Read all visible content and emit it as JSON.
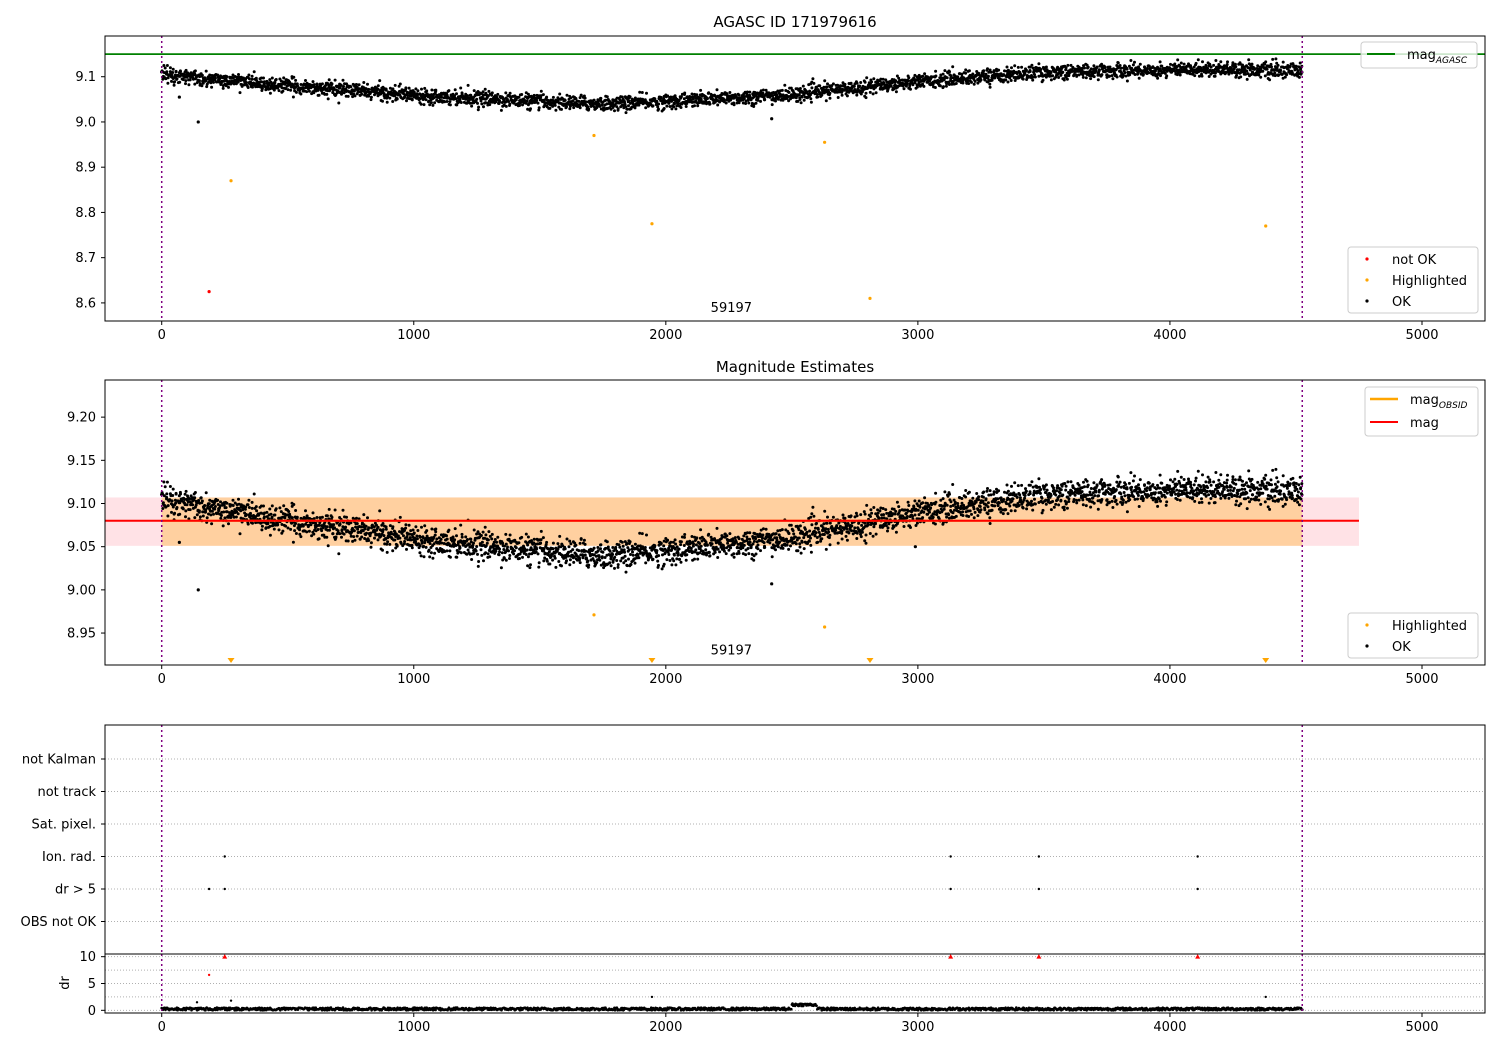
{
  "chart_data": [
    {
      "type": "scatter",
      "title": "AGASC ID 171979616",
      "xlim": [
        -225,
        5250
      ],
      "ylim": [
        8.56,
        9.19
      ],
      "x_ticks": [
        0,
        1000,
        2000,
        3000,
        4000,
        5000
      ],
      "x_tick_labels": [
        "0",
        "1000",
        "2000",
        "3000",
        "4000",
        "5000"
      ],
      "y_ticks": [
        8.6,
        8.7,
        8.8,
        8.9,
        9.0,
        9.1
      ],
      "y_tick_labels": [
        "8.6",
        "8.7",
        "8.8",
        "8.9",
        "9.0",
        "9.1"
      ],
      "obs_start": 0,
      "obs_end": 4525,
      "obs_label": "59197",
      "obs_label_x": 2260,
      "obs_label_y": 8.58,
      "hlines": [
        {
          "name": "mag_AGASC",
          "y": 9.15,
          "color": "#008000"
        }
      ],
      "ok_trend": [
        [
          0,
          9.105
        ],
        [
          500,
          9.08
        ],
        [
          1000,
          9.06
        ],
        [
          1500,
          9.045
        ],
        [
          1750,
          9.04
        ],
        [
          2000,
          9.045
        ],
        [
          2500,
          9.06
        ],
        [
          2750,
          9.075
        ],
        [
          3000,
          9.09
        ],
        [
          3250,
          9.1
        ],
        [
          3500,
          9.11
        ],
        [
          4000,
          9.115
        ],
        [
          4200,
          9.118
        ],
        [
          4525,
          9.112
        ]
      ],
      "ok_scatter": 0.008,
      "ok_outliers": [
        {
          "x": 145,
          "y": 9.0
        },
        {
          "x": 70,
          "y": 9.055
        },
        {
          "x": 2420,
          "y": 9.007
        }
      ],
      "series": [
        {
          "name": "not OK",
          "color": "#ff0000",
          "points": [
            {
              "x": 188,
              "y": 8.625
            }
          ]
        },
        {
          "name": "Highlighted",
          "color": "#ffa500",
          "points": [
            {
              "x": 275,
              "y": 8.87
            },
            {
              "x": 1715,
              "y": 8.97
            },
            {
              "x": 1945,
              "y": 8.775
            },
            {
              "x": 2630,
              "y": 8.955
            },
            {
              "x": 2810,
              "y": 8.61
            },
            {
              "x": 4380,
              "y": 8.77
            }
          ]
        },
        {
          "name": "OK",
          "color": "#000000",
          "points": []
        }
      ],
      "legend_top": {
        "entries": [
          {
            "label": "mag",
            "sub": "AGASC",
            "color": "#008000"
          }
        ],
        "placement": "upper right"
      },
      "legend_bottom": {
        "entries": [
          {
            "label": "not OK",
            "color": "#ff0000"
          },
          {
            "label": "Highlighted",
            "color": "#ffa500"
          },
          {
            "label": "OK",
            "color": "#000000"
          }
        ],
        "placement": "lower right"
      }
    },
    {
      "type": "scatter",
      "title": "Magnitude Estimates",
      "xlim": [
        -225,
        5250
      ],
      "ylim": [
        8.913,
        9.243
      ],
      "x_ticks": [
        0,
        1000,
        2000,
        3000,
        4000,
        5000
      ],
      "x_tick_labels": [
        "0",
        "1000",
        "2000",
        "3000",
        "4000",
        "5000"
      ],
      "y_ticks": [
        8.95,
        9.0,
        9.05,
        9.1,
        9.15,
        9.2
      ],
      "y_tick_labels": [
        "8.95",
        "9.00",
        "9.05",
        "9.10",
        "9.15",
        "9.20"
      ],
      "obs_start": 0,
      "obs_end": 4525,
      "obs_label": "59197",
      "obs_label_x": 2260,
      "obs_label_y": 8.925,
      "bands": [
        {
          "name": "mag band",
          "x0": -225,
          "x1": 4750,
          "y0": 9.051,
          "y1": 9.107,
          "color": "#ffb6c1",
          "opacity": 0.4
        },
        {
          "name": "obsid band",
          "x0": 0,
          "x1": 4525,
          "y0": 9.051,
          "y1": 9.107,
          "color": "#ffa500",
          "opacity": 0.3
        }
      ],
      "hlines": [
        {
          "name": "mag_OBSID",
          "y": 9.08,
          "x0": 0,
          "x1": 4525,
          "color": "#ffa500"
        },
        {
          "name": "mag",
          "y": 9.08,
          "x0": -225,
          "x1": 4750,
          "color": "#ff0000"
        }
      ],
      "ok_trend": [
        [
          0,
          9.105
        ],
        [
          500,
          9.08
        ],
        [
          1000,
          9.06
        ],
        [
          1500,
          9.045
        ],
        [
          1750,
          9.04
        ],
        [
          2000,
          9.045
        ],
        [
          2500,
          9.06
        ],
        [
          2750,
          9.075
        ],
        [
          3000,
          9.09
        ],
        [
          3250,
          9.1
        ],
        [
          3500,
          9.11
        ],
        [
          4000,
          9.115
        ],
        [
          4200,
          9.118
        ],
        [
          4525,
          9.112
        ]
      ],
      "ok_scatter": 0.008,
      "ok_outliers": [
        {
          "x": 145,
          "y": 9.0
        },
        {
          "x": 70,
          "y": 9.055
        },
        {
          "x": 2420,
          "y": 9.007
        },
        {
          "x": 2990,
          "y": 9.05
        }
      ],
      "series": [
        {
          "name": "Highlighted",
          "color": "#ffa500",
          "points": [
            {
              "x": 1715,
              "y": 8.971
            },
            {
              "x": 2630,
              "y": 8.957
            }
          ]
        },
        {
          "name": "OK",
          "color": "#000000",
          "points": []
        }
      ],
      "offscale_markers": {
        "color": "#ffa500",
        "x": [
          275,
          1945,
          2810,
          4380
        ]
      },
      "legend_top": {
        "entries": [
          {
            "label": "mag",
            "sub": "OBSID",
            "color": "#ffa500"
          },
          {
            "label": "mag",
            "sub": "",
            "color": "#ff0000"
          }
        ],
        "placement": "upper right"
      },
      "legend_bottom": {
        "entries": [
          {
            "label": "Highlighted",
            "color": "#ffa500"
          },
          {
            "label": "OK",
            "color": "#000000"
          }
        ],
        "placement": "lower right"
      }
    },
    {
      "type": "scatter",
      "title": "",
      "xlim": [
        -225,
        5250
      ],
      "categories": [
        "not Kalman",
        "not track",
        "Sat. pixel.",
        "Ion. rad.",
        "dr > 5",
        "OBS not OK"
      ],
      "flag_points": [
        {
          "category": "Ion. rad.",
          "x": [
            250,
            3130,
            3480,
            4110
          ]
        },
        {
          "category": "dr > 5",
          "x": [
            188,
            250,
            3130,
            3480,
            4110
          ]
        }
      ],
      "obs_start": 0,
      "obs_end": 4525
    },
    {
      "type": "scatter",
      "title": "",
      "ylabel": "dr",
      "xlim": [
        -225,
        5250
      ],
      "ylim": [
        -0.5,
        10.5
      ],
      "x_ticks": [
        0,
        1000,
        2000,
        3000,
        4000,
        5000
      ],
      "x_tick_labels": [
        "0",
        "1000",
        "2000",
        "3000",
        "4000",
        "5000"
      ],
      "y_ticks": [
        0,
        5,
        10
      ],
      "y_tick_labels": [
        "0",
        "5",
        "10"
      ],
      "obs_start": 0,
      "obs_end": 4525,
      "baseline_level": 0.2,
      "baseline_bumps": [
        {
          "x0": 2500,
          "x1": 2600,
          "y": 1.0
        }
      ],
      "points": [
        {
          "x": 140,
          "y": 1.5,
          "color": "#000000"
        },
        {
          "x": 275,
          "y": 1.8,
          "color": "#000000"
        },
        {
          "x": 1945,
          "y": 2.5,
          "color": "#000000"
        },
        {
          "x": 4380,
          "y": 2.5,
          "color": "#000000"
        },
        {
          "x": 188,
          "y": 6.6,
          "color": "#ff0000"
        }
      ],
      "capped_markers": {
        "color": "#ff0000",
        "y": 10,
        "x": [
          250,
          3130,
          3480,
          4110
        ]
      }
    }
  ]
}
